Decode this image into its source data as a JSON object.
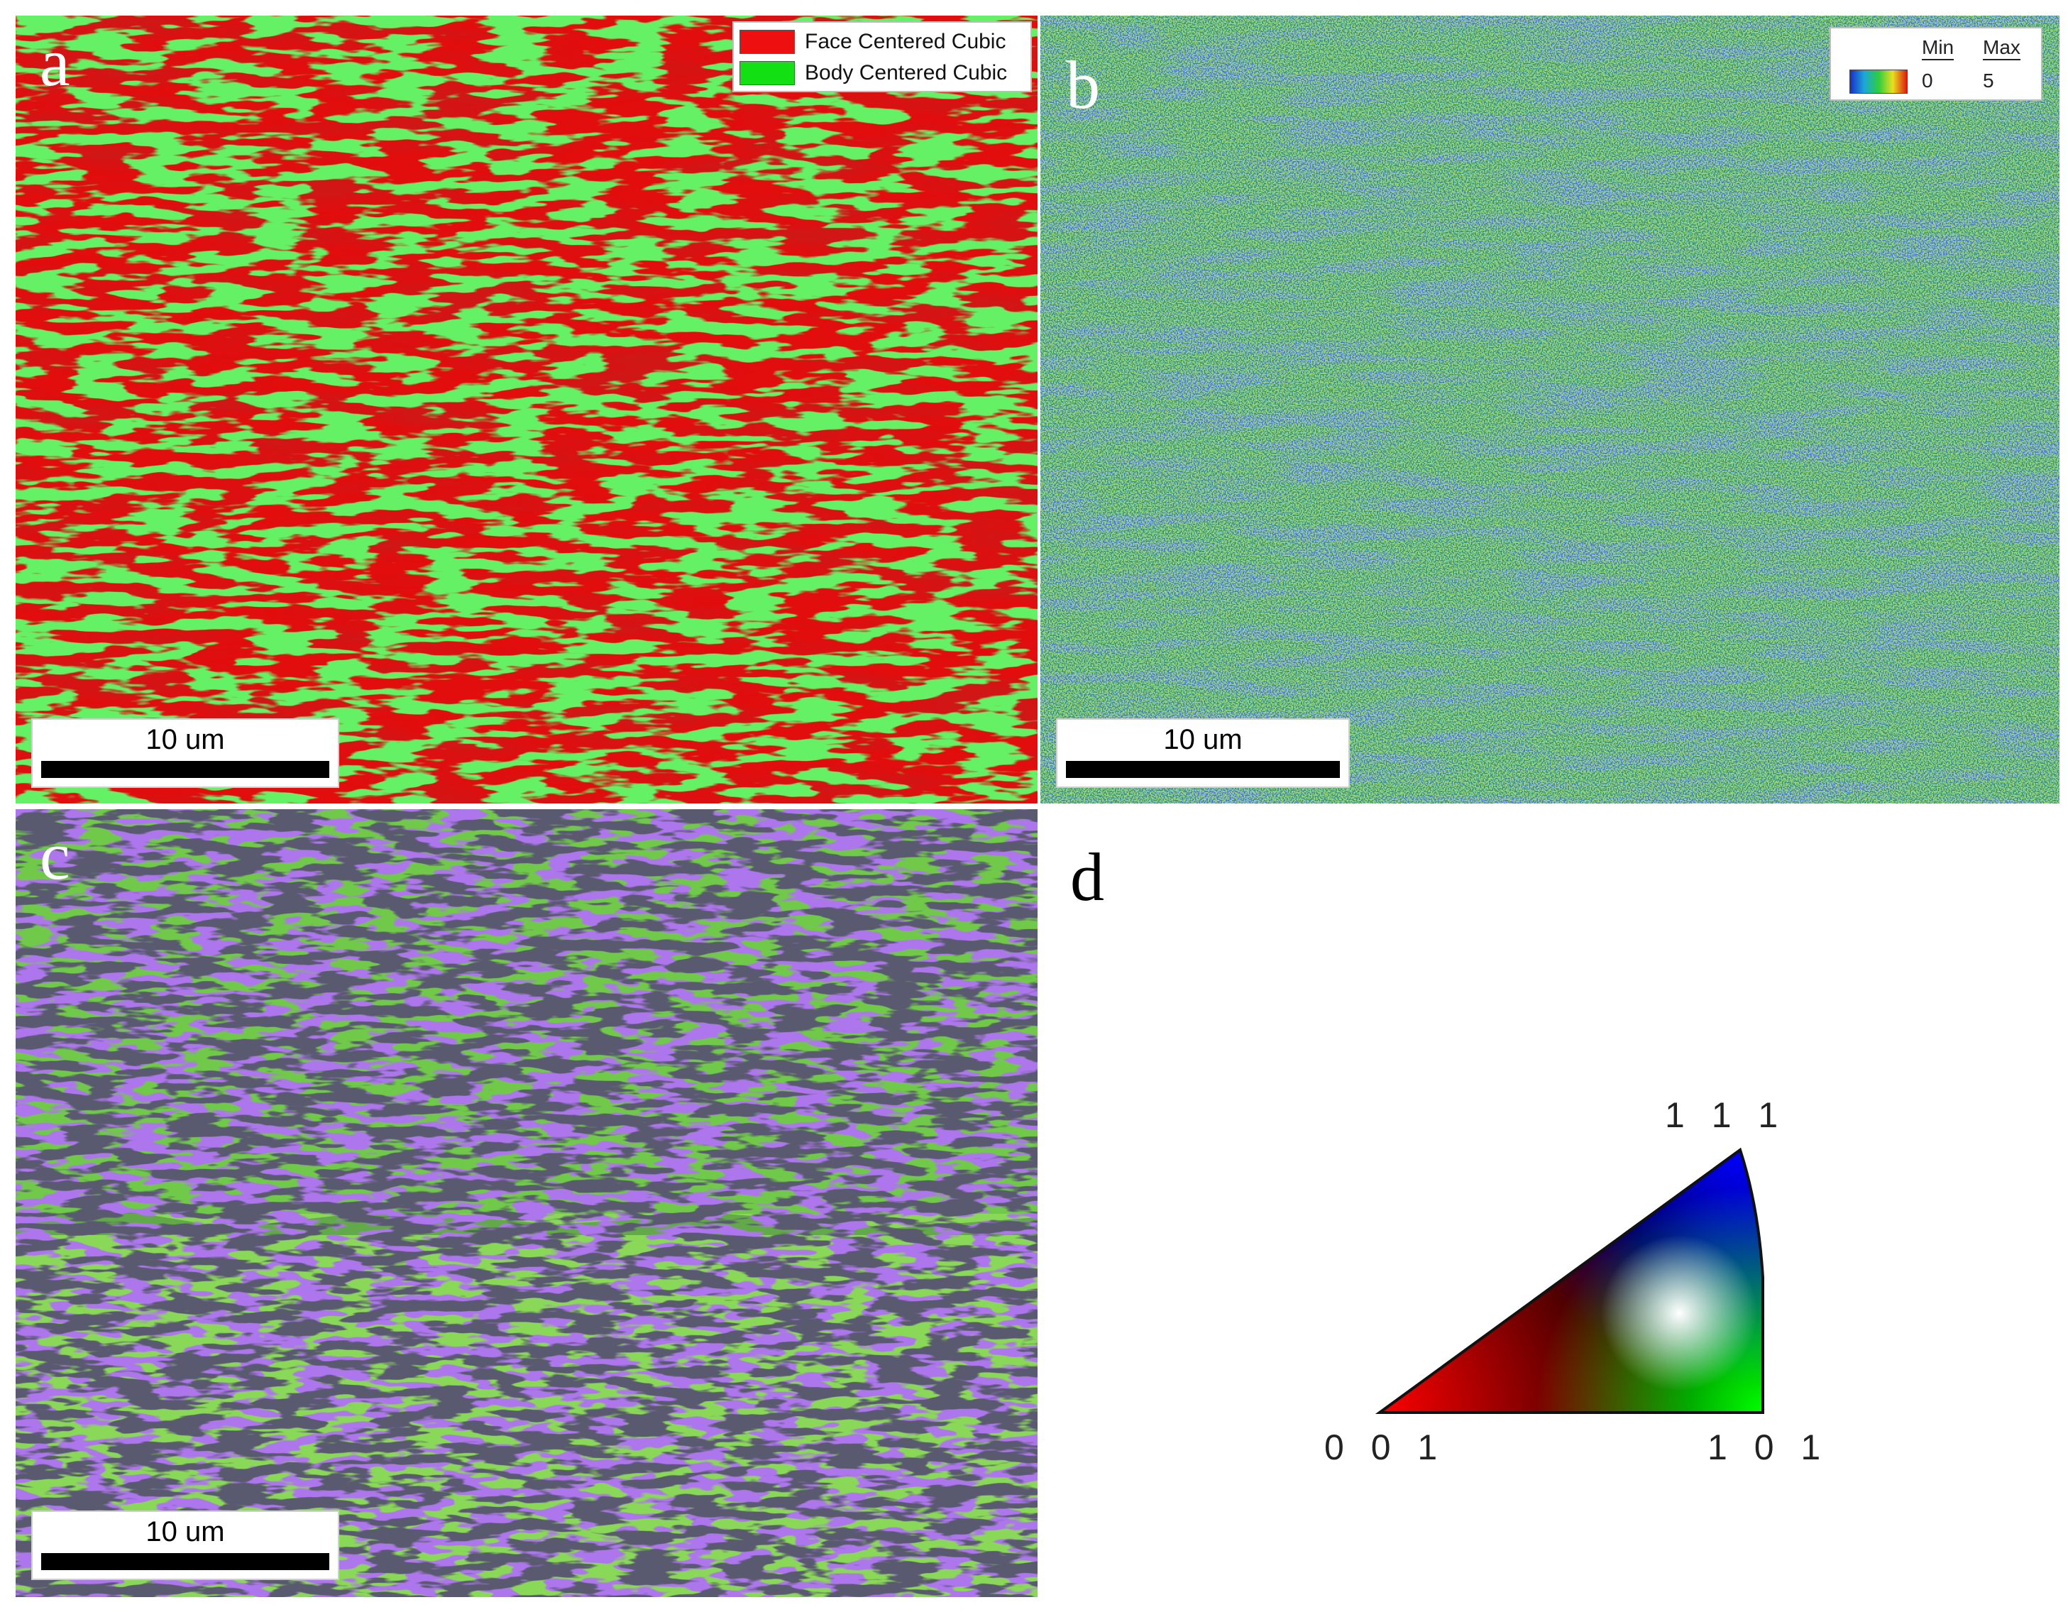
{
  "panels": {
    "a": {
      "label": "a",
      "legend": [
        {
          "name": "Face Centered Cubic",
          "color": "#ee1010"
        },
        {
          "name": "Body Centered Cubic",
          "color": "#12e012"
        }
      ],
      "scale_bar": "10 um"
    },
    "b": {
      "label": "b",
      "legend": {
        "min_label": "Min",
        "max_label": "Max",
        "min_value": "0",
        "max_value": "5"
      },
      "scale_bar": "10 um"
    },
    "c": {
      "label": "c",
      "scale_bar": "10 um"
    },
    "d": {
      "label": "d",
      "corners": {
        "top": "1 1 1",
        "bottom_left": "0 0 1",
        "bottom_right": "1 0 1"
      }
    }
  },
  "colors": {
    "fcc": "#e30c0c",
    "bcc": "#22e022",
    "kam_base": "#1f52d8",
    "kam_high": "#7fe63a",
    "ipf_base": "#78d848",
    "ipf_accent": "#6b2fd6"
  }
}
